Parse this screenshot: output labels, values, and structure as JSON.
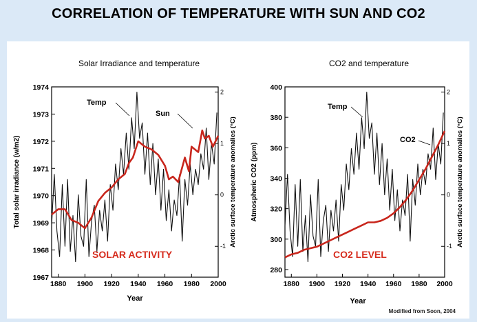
{
  "header": {
    "title": "CORRELATION OF TEMPERATURE WITH SUN AND CO2"
  },
  "credit": "Modified from Soon, 2004",
  "chart_data": [
    {
      "type": "line",
      "title": "Solar Irradiance and temperature",
      "xlabel": "Year",
      "ylabel": "Total solar irradiance (w/m2)",
      "y2label": "Arctic surface temperature anomalies (°C)",
      "xlim": [
        1875,
        2000
      ],
      "ylim": [
        1967,
        1974
      ],
      "y2lim": [
        -1.6,
        2.1
      ],
      "xticks": [
        1880,
        1900,
        1920,
        1940,
        1960,
        1980,
        2000
      ],
      "yticks": [
        1967,
        1968,
        1969,
        1970,
        1971,
        1972,
        1973,
        1974
      ],
      "y2ticks": [
        -1,
        0,
        1,
        2
      ],
      "annotation": "SOLAR ACTIVITY",
      "annotation_color": "#d62c1e",
      "series": [
        {
          "name": "Temp",
          "axis": "y2",
          "color": "#111111",
          "x": [
            1875,
            1877,
            1879,
            1881,
            1883,
            1885,
            1887,
            1889,
            1891,
            1893,
            1895,
            1897,
            1899,
            1901,
            1903,
            1905,
            1907,
            1909,
            1911,
            1913,
            1915,
            1917,
            1919,
            1921,
            1923,
            1925,
            1927,
            1929,
            1931,
            1933,
            1935,
            1937,
            1939,
            1941,
            1943,
            1945,
            1947,
            1949,
            1951,
            1953,
            1955,
            1957,
            1959,
            1961,
            1963,
            1965,
            1967,
            1969,
            1971,
            1973,
            1975,
            1977,
            1979,
            1981,
            1983,
            1985,
            1987,
            1989,
            1991,
            1993,
            1995,
            1997,
            1999
          ],
          "y": [
            -0.6,
            0.4,
            -0.7,
            -1.2,
            0.2,
            -1.0,
            0.3,
            -1.1,
            -0.4,
            -1.3,
            0.0,
            -0.8,
            -1.0,
            0.3,
            -1.2,
            -0.5,
            -0.2,
            -1.1,
            -0.3,
            -0.7,
            -0.1,
            -0.9,
            0.2,
            -0.3,
            0.6,
            0.1,
            0.9,
            0.4,
            1.2,
            0.5,
            1.5,
            0.9,
            2.0,
            1.1,
            1.4,
            0.4,
            1.2,
            0.2,
            1.0,
            0.0,
            0.7,
            -0.3,
            0.5,
            -0.5,
            0.1,
            -0.7,
            -0.1,
            -0.4,
            0.4,
            -0.9,
            0.3,
            -0.2,
            0.6,
            0.0,
            0.5,
            0.2,
            0.8,
            0.5,
            1.3,
            0.3,
            1.0,
            0.6,
            1.6
          ]
        },
        {
          "name": "Sun",
          "axis": "y",
          "color": "#c8261c",
          "x": [
            1875,
            1880,
            1885,
            1890,
            1895,
            1900,
            1905,
            1910,
            1915,
            1920,
            1925,
            1930,
            1933,
            1936,
            1940,
            1945,
            1950,
            1955,
            1960,
            1963,
            1966,
            1970,
            1975,
            1978,
            1980,
            1985,
            1988,
            1990,
            1993,
            1996,
            2000
          ],
          "y": [
            1969.3,
            1969.5,
            1969.5,
            1969.1,
            1969.0,
            1968.8,
            1969.2,
            1969.8,
            1970.1,
            1970.3,
            1970.6,
            1970.8,
            1971.2,
            1971.4,
            1972.0,
            1971.8,
            1971.7,
            1971.5,
            1971.1,
            1970.6,
            1970.7,
            1970.5,
            1971.4,
            1970.9,
            1971.8,
            1971.6,
            1972.4,
            1972.1,
            1972.2,
            1971.8,
            1972.2
          ]
        }
      ],
      "series_labels": [
        "Temp",
        "Sun"
      ]
    },
    {
      "type": "line",
      "title": "CO2 and temperature",
      "xlabel": "Year",
      "ylabel": "Atmospheric CO2 (ppm)",
      "y2label": "Arctic surface temperature anomalies (°C)",
      "xlim": [
        1875,
        2000
      ],
      "ylim": [
        275,
        400
      ],
      "y2lim": [
        -1.6,
        2.1
      ],
      "xticks": [
        1880,
        1900,
        1920,
        1940,
        1960,
        1980,
        2000
      ],
      "yticks": [
        280,
        300,
        320,
        340,
        360,
        380,
        400
      ],
      "y2ticks": [
        -1,
        0,
        1,
        2
      ],
      "annotation": "CO2 LEVEL",
      "annotation_color": "#d62c1e",
      "series": [
        {
          "name": "Temp",
          "axis": "y2",
          "color": "#111111",
          "x": [
            1875,
            1877,
            1879,
            1881,
            1883,
            1885,
            1887,
            1889,
            1891,
            1893,
            1895,
            1897,
            1899,
            1901,
            1903,
            1905,
            1907,
            1909,
            1911,
            1913,
            1915,
            1917,
            1919,
            1921,
            1923,
            1925,
            1927,
            1929,
            1931,
            1933,
            1935,
            1937,
            1939,
            1941,
            1943,
            1945,
            1947,
            1949,
            1951,
            1953,
            1955,
            1957,
            1959,
            1961,
            1963,
            1965,
            1967,
            1969,
            1971,
            1973,
            1975,
            1977,
            1979,
            1981,
            1983,
            1985,
            1987,
            1989,
            1991,
            1993,
            1995,
            1997,
            1999
          ],
          "y": [
            -0.6,
            0.4,
            -0.7,
            -1.2,
            0.2,
            -1.0,
            0.3,
            -1.1,
            -0.4,
            -1.3,
            0.0,
            -0.8,
            -1.0,
            0.3,
            -1.2,
            -0.5,
            -0.2,
            -1.1,
            -0.3,
            -0.7,
            -0.1,
            -0.9,
            0.2,
            -0.3,
            0.6,
            0.1,
            0.9,
            0.4,
            1.2,
            0.5,
            1.5,
            0.9,
            2.0,
            1.1,
            1.4,
            0.4,
            1.2,
            0.2,
            1.0,
            0.0,
            0.7,
            -0.3,
            0.5,
            -0.5,
            0.1,
            -0.7,
            -0.1,
            -0.4,
            0.4,
            -0.9,
            0.3,
            -0.2,
            0.6,
            0.0,
            0.5,
            0.2,
            0.8,
            0.5,
            1.3,
            0.3,
            1.0,
            0.6,
            1.6
          ]
        },
        {
          "name": "CO2",
          "axis": "y",
          "color": "#c8261c",
          "x": [
            1875,
            1880,
            1885,
            1890,
            1895,
            1900,
            1905,
            1910,
            1915,
            1920,
            1925,
            1930,
            1935,
            1940,
            1945,
            1950,
            1955,
            1960,
            1965,
            1970,
            1975,
            1980,
            1985,
            1990,
            1995,
            2000
          ],
          "y": [
            288,
            290,
            291,
            293,
            294,
            295,
            297,
            299,
            301,
            303,
            305,
            307,
            309,
            311,
            311,
            312,
            314,
            317,
            321,
            326,
            332,
            339,
            346,
            354,
            362,
            371
          ]
        }
      ],
      "series_labels": [
        "Temp",
        "CO2"
      ]
    }
  ]
}
